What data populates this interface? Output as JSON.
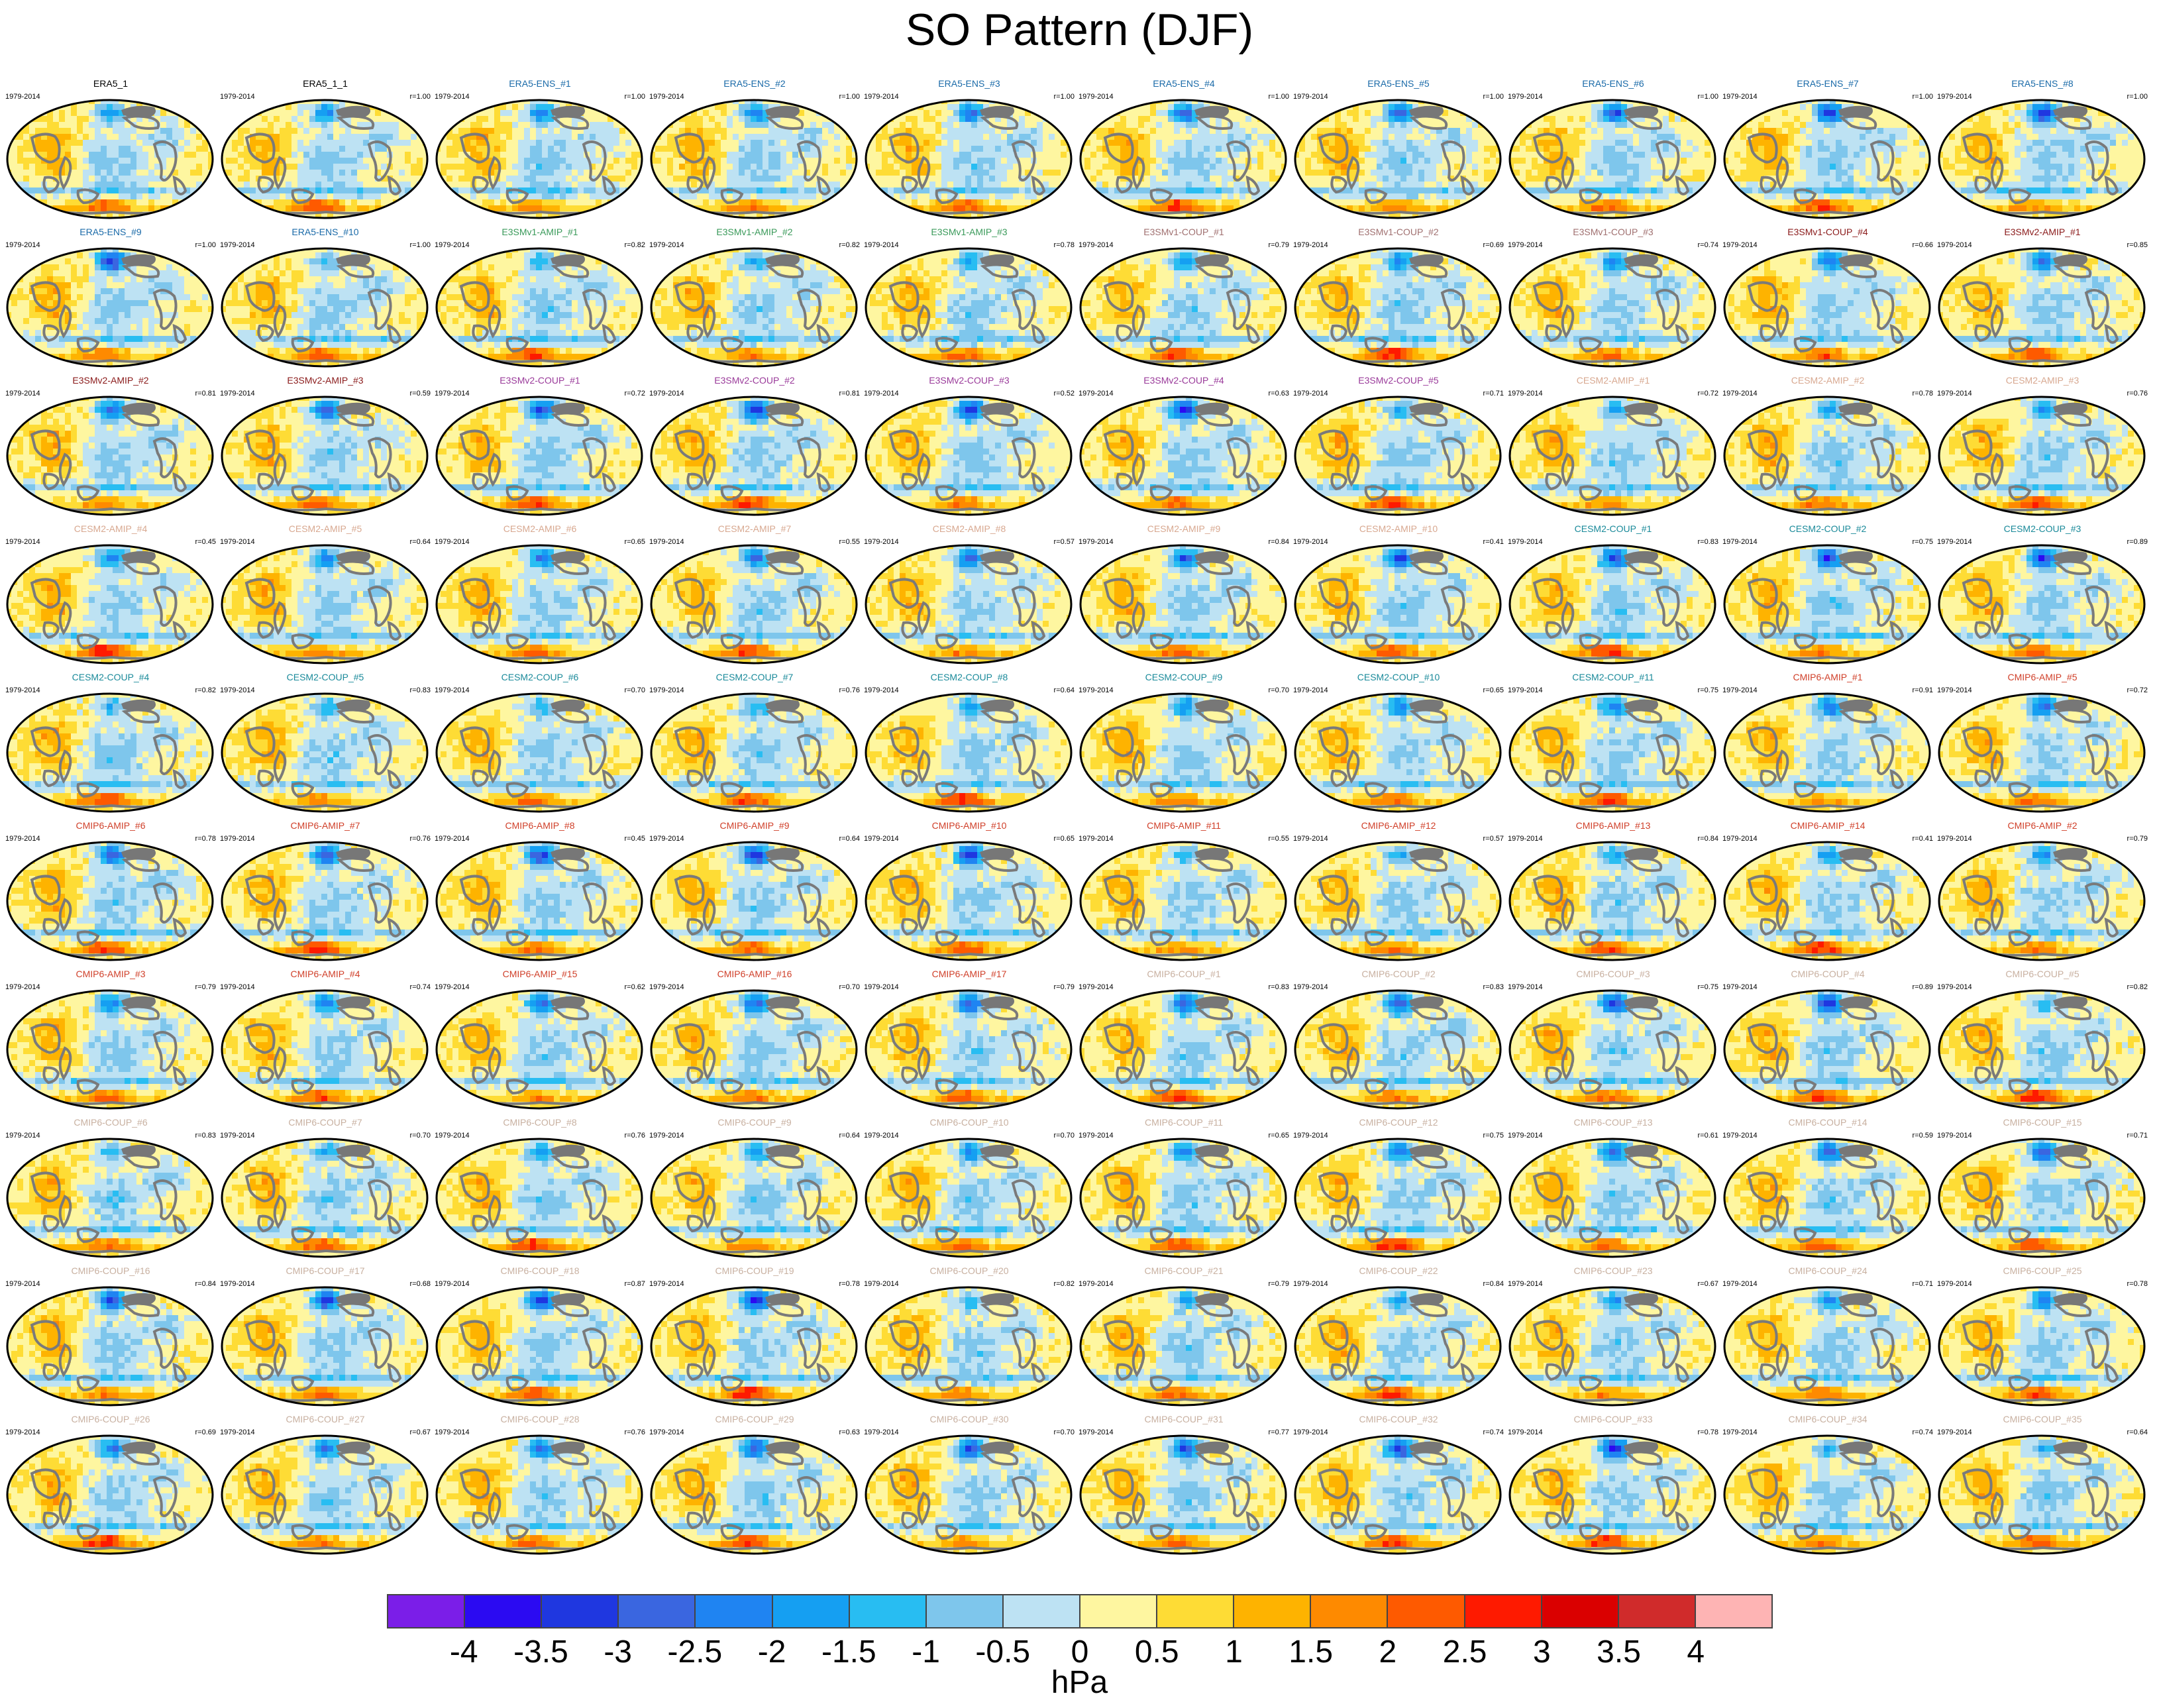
{
  "title": "SO Pattern (DJF)",
  "colorbar": {
    "unit": "hPa",
    "ticks": [
      "-4",
      "-3.5",
      "-3",
      "-2.5",
      "-2",
      "-1.5",
      "-1",
      "-0.5",
      "0",
      "0.5",
      "1",
      "1.5",
      "2",
      "2.5",
      "3",
      "3.5",
      "4"
    ],
    "colors": [
      "#7b1ee8",
      "#2b0af2",
      "#1f37e0",
      "#3a66e0",
      "#1f84f2",
      "#159ff2",
      "#28bdf2",
      "#7ec6ec",
      "#bde2f3",
      "#fef6a0",
      "#fedc35",
      "#feb300",
      "#fe8a00",
      "#fe5a00",
      "#fe1a00",
      "#da0000",
      "#d02b2b",
      "#feb4b4"
    ]
  },
  "panels": [
    {
      "years": "1979-2014",
      "name": "ERA5_1",
      "corr": "",
      "color": "#000000"
    },
    {
      "years": "1979-2014",
      "name": "ERA5_1_1",
      "corr": "r=1.00",
      "color": "#000000"
    },
    {
      "years": "1979-2014",
      "name": "ERA5-ENS_#1",
      "corr": "r=1.00",
      "color": "#1a6aa8"
    },
    {
      "years": "1979-2014",
      "name": "ERA5-ENS_#2",
      "corr": "r=1.00",
      "color": "#1a6aa8"
    },
    {
      "years": "1979-2014",
      "name": "ERA5-ENS_#3",
      "corr": "r=1.00",
      "color": "#1a6aa8"
    },
    {
      "years": "1979-2014",
      "name": "ERA5-ENS_#4",
      "corr": "r=1.00",
      "color": "#1a6aa8"
    },
    {
      "years": "1979-2014",
      "name": "ERA5-ENS_#5",
      "corr": "r=1.00",
      "color": "#1a6aa8"
    },
    {
      "years": "1979-2014",
      "name": "ERA5-ENS_#6",
      "corr": "r=1.00",
      "color": "#1a6aa8"
    },
    {
      "years": "1979-2014",
      "name": "ERA5-ENS_#7",
      "corr": "r=1.00",
      "color": "#1a6aa8"
    },
    {
      "years": "1979-2014",
      "name": "ERA5-ENS_#8",
      "corr": "r=1.00",
      "color": "#1a6aa8"
    },
    {
      "years": "1979-2014",
      "name": "ERA5-ENS_#9",
      "corr": "r=1.00",
      "color": "#1a6aa8"
    },
    {
      "years": "1979-2014",
      "name": "ERA5-ENS_#10",
      "corr": "r=1.00",
      "color": "#1a6aa8"
    },
    {
      "years": "1979-2014",
      "name": "E3SMv1-AMIP_#1",
      "corr": "r=0.82",
      "color": "#3a9a5a"
    },
    {
      "years": "1979-2014",
      "name": "E3SMv1-AMIP_#2",
      "corr": "r=0.82",
      "color": "#3a9a5a"
    },
    {
      "years": "1979-2014",
      "name": "E3SMv1-AMIP_#3",
      "corr": "r=0.78",
      "color": "#3a9a5a"
    },
    {
      "years": "1979-2014",
      "name": "E3SMv1-COUP_#1",
      "corr": "r=0.79",
      "color": "#a07070"
    },
    {
      "years": "1979-2014",
      "name": "E3SMv1-COUP_#2",
      "corr": "r=0.69",
      "color": "#a07070"
    },
    {
      "years": "1979-2014",
      "name": "E3SMv1-COUP_#3",
      "corr": "r=0.74",
      "color": "#a07070"
    },
    {
      "years": "1979-2014",
      "name": "E3SMv1-COUP_#4",
      "corr": "r=0.66",
      "color": "#8a1a1a"
    },
    {
      "years": "1979-2014",
      "name": "E3SMv2-AMIP_#1",
      "corr": "r=0.85",
      "color": "#8a1a1a"
    },
    {
      "years": "1979-2014",
      "name": "E3SMv2-AMIP_#2",
      "corr": "r=0.81",
      "color": "#8a1a1a"
    },
    {
      "years": "1979-2014",
      "name": "E3SMv2-AMIP_#3",
      "corr": "r=0.59",
      "color": "#8a1a1a"
    },
    {
      "years": "1979-2014",
      "name": "E3SMv2-COUP_#1",
      "corr": "r=0.72",
      "color": "#9a3a9a"
    },
    {
      "years": "1979-2014",
      "name": "E3SMv2-COUP_#2",
      "corr": "r=0.81",
      "color": "#9a3a9a"
    },
    {
      "years": "1979-2014",
      "name": "E3SMv2-COUP_#3",
      "corr": "r=0.52",
      "color": "#9a3a9a"
    },
    {
      "years": "1979-2014",
      "name": "E3SMv2-COUP_#4",
      "corr": "r=0.63",
      "color": "#9a3a9a"
    },
    {
      "years": "1979-2014",
      "name": "E3SMv2-COUP_#5",
      "corr": "r=0.71",
      "color": "#9a3a9a"
    },
    {
      "years": "1979-2014",
      "name": "CESM2-AMIP_#1",
      "corr": "r=0.72",
      "color": "#d8a890"
    },
    {
      "years": "1979-2014",
      "name": "CESM2-AMIP_#2",
      "corr": "r=0.78",
      "color": "#d8a890"
    },
    {
      "years": "1979-2014",
      "name": "CESM2-AMIP_#3",
      "corr": "r=0.76",
      "color": "#d8a890"
    },
    {
      "years": "1979-2014",
      "name": "CESM2-AMIP_#4",
      "corr": "r=0.45",
      "color": "#d8a890"
    },
    {
      "years": "1979-2014",
      "name": "CESM2-AMIP_#5",
      "corr": "r=0.64",
      "color": "#d8a890"
    },
    {
      "years": "1979-2014",
      "name": "CESM2-AMIP_#6",
      "corr": "r=0.65",
      "color": "#d8a890"
    },
    {
      "years": "1979-2014",
      "name": "CESM2-AMIP_#7",
      "corr": "r=0.55",
      "color": "#d8a890"
    },
    {
      "years": "1979-2014",
      "name": "CESM2-AMIP_#8",
      "corr": "r=0.57",
      "color": "#d8a890"
    },
    {
      "years": "1979-2014",
      "name": "CESM2-AMIP_#9",
      "corr": "r=0.84",
      "color": "#d8a890"
    },
    {
      "years": "1979-2014",
      "name": "CESM2-AMIP_#10",
      "corr": "r=0.41",
      "color": "#d8a890"
    },
    {
      "years": "1979-2014",
      "name": "CESM2-COUP_#1",
      "corr": "r=0.83",
      "color": "#1a8a9a"
    },
    {
      "years": "1979-2014",
      "name": "CESM2-COUP_#2",
      "corr": "r=0.75",
      "color": "#1a8a9a"
    },
    {
      "years": "1979-2014",
      "name": "CESM2-COUP_#3",
      "corr": "r=0.89",
      "color": "#1a8a9a"
    },
    {
      "years": "1979-2014",
      "name": "CESM2-COUP_#4",
      "corr": "r=0.82",
      "color": "#1a8a9a"
    },
    {
      "years": "1979-2014",
      "name": "CESM2-COUP_#5",
      "corr": "r=0.83",
      "color": "#1a8a9a"
    },
    {
      "years": "1979-2014",
      "name": "CESM2-COUP_#6",
      "corr": "r=0.70",
      "color": "#1a8a9a"
    },
    {
      "years": "1979-2014",
      "name": "CESM2-COUP_#7",
      "corr": "r=0.76",
      "color": "#1a8a9a"
    },
    {
      "years": "1979-2014",
      "name": "CESM2-COUP_#8",
      "corr": "r=0.64",
      "color": "#1a8a9a"
    },
    {
      "years": "1979-2014",
      "name": "CESM2-COUP_#9",
      "corr": "r=0.70",
      "color": "#1a8a9a"
    },
    {
      "years": "1979-2014",
      "name": "CESM2-COUP_#10",
      "corr": "r=0.65",
      "color": "#1a8a9a"
    },
    {
      "years": "1979-2014",
      "name": "CESM2-COUP_#11",
      "corr": "r=0.75",
      "color": "#1a8a9a"
    },
    {
      "years": "1979-2014",
      "name": "CMIP6-AMIP_#1",
      "corr": "r=0.91",
      "color": "#d0402a"
    },
    {
      "years": "1979-2014",
      "name": "CMIP6-AMIP_#5",
      "corr": "r=0.72",
      "color": "#d0402a"
    },
    {
      "years": "1979-2014",
      "name": "CMIP6-AMIP_#6",
      "corr": "r=0.78",
      "color": "#d0402a"
    },
    {
      "years": "1979-2014",
      "name": "CMIP6-AMIP_#7",
      "corr": "r=0.76",
      "color": "#d0402a"
    },
    {
      "years": "1979-2014",
      "name": "CMIP6-AMIP_#8",
      "corr": "r=0.45",
      "color": "#d0402a"
    },
    {
      "years": "1979-2014",
      "name": "CMIP6-AMIP_#9",
      "corr": "r=0.64",
      "color": "#d0402a"
    },
    {
      "years": "1979-2014",
      "name": "CMIP6-AMIP_#10",
      "corr": "r=0.65",
      "color": "#d0402a"
    },
    {
      "years": "1979-2014",
      "name": "CMIP6-AMIP_#11",
      "corr": "r=0.55",
      "color": "#d0402a"
    },
    {
      "years": "1979-2014",
      "name": "CMIP6-AMIP_#12",
      "corr": "r=0.57",
      "color": "#d0402a"
    },
    {
      "years": "1979-2014",
      "name": "CMIP6-AMIP_#13",
      "corr": "r=0.84",
      "color": "#d0402a"
    },
    {
      "years": "1979-2014",
      "name": "CMIP6-AMIP_#14",
      "corr": "r=0.41",
      "color": "#d0402a"
    },
    {
      "years": "1979-2014",
      "name": "CMIP6-AMIP_#2",
      "corr": "r=0.79",
      "color": "#d0402a"
    },
    {
      "years": "1979-2014",
      "name": "CMIP6-AMIP_#3",
      "corr": "r=0.79",
      "color": "#d0402a"
    },
    {
      "years": "1979-2014",
      "name": "CMIP6-AMIP_#4",
      "corr": "r=0.74",
      "color": "#d0402a"
    },
    {
      "years": "1979-2014",
      "name": "CMIP6-AMIP_#15",
      "corr": "r=0.62",
      "color": "#d0402a"
    },
    {
      "years": "1979-2014",
      "name": "CMIP6-AMIP_#16",
      "corr": "r=0.70",
      "color": "#d0402a"
    },
    {
      "years": "1979-2014",
      "name": "CMIP6-AMIP_#17",
      "corr": "r=0.79",
      "color": "#d0402a"
    },
    {
      "years": "1979-2014",
      "name": "CMIP6-COUP_#1",
      "corr": "r=0.83",
      "color": "#c8b0a0"
    },
    {
      "years": "1979-2014",
      "name": "CMIP6-COUP_#2",
      "corr": "r=0.83",
      "color": "#c8b0a0"
    },
    {
      "years": "1979-2014",
      "name": "CMIP6-COUP_#3",
      "corr": "r=0.75",
      "color": "#c8b0a0"
    },
    {
      "years": "1979-2014",
      "name": "CMIP6-COUP_#4",
      "corr": "r=0.89",
      "color": "#c8b0a0"
    },
    {
      "years": "1979-2014",
      "name": "CMIP6-COUP_#5",
      "corr": "r=0.82",
      "color": "#c8b0a0"
    },
    {
      "years": "1979-2014",
      "name": "CMIP6-COUP_#6",
      "corr": "r=0.83",
      "color": "#c8b0a0"
    },
    {
      "years": "1979-2014",
      "name": "CMIP6-COUP_#7",
      "corr": "r=0.70",
      "color": "#c8b0a0"
    },
    {
      "years": "1979-2014",
      "name": "CMIP6-COUP_#8",
      "corr": "r=0.76",
      "color": "#c8b0a0"
    },
    {
      "years": "1979-2014",
      "name": "CMIP6-COUP_#9",
      "corr": "r=0.64",
      "color": "#c8b0a0"
    },
    {
      "years": "1979-2014",
      "name": "CMIP6-COUP_#10",
      "corr": "r=0.70",
      "color": "#c8b0a0"
    },
    {
      "years": "1979-2014",
      "name": "CMIP6-COUP_#11",
      "corr": "r=0.65",
      "color": "#c8b0a0"
    },
    {
      "years": "1979-2014",
      "name": "CMIP6-COUP_#12",
      "corr": "r=0.75",
      "color": "#c8b0a0"
    },
    {
      "years": "1979-2014",
      "name": "CMIP6-COUP_#13",
      "corr": "r=0.61",
      "color": "#c8b0a0"
    },
    {
      "years": "1979-2014",
      "name": "CMIP6-COUP_#14",
      "corr": "r=0.59",
      "color": "#c8b0a0"
    },
    {
      "years": "1979-2014",
      "name": "CMIP6-COUP_#15",
      "corr": "r=0.71",
      "color": "#c8b0a0"
    },
    {
      "years": "1979-2014",
      "name": "CMIP6-COUP_#16",
      "corr": "r=0.84",
      "color": "#c8b0a0"
    },
    {
      "years": "1979-2014",
      "name": "CMIP6-COUP_#17",
      "corr": "r=0.68",
      "color": "#c8b0a0"
    },
    {
      "years": "1979-2014",
      "name": "CMIP6-COUP_#18",
      "corr": "r=0.87",
      "color": "#c8b0a0"
    },
    {
      "years": "1979-2014",
      "name": "CMIP6-COUP_#19",
      "corr": "r=0.78",
      "color": "#c8b0a0"
    },
    {
      "years": "1979-2014",
      "name": "CMIP6-COUP_#20",
      "corr": "r=0.82",
      "color": "#c8b0a0"
    },
    {
      "years": "1979-2014",
      "name": "CMIP6-COUP_#21",
      "corr": "r=0.79",
      "color": "#c8b0a0"
    },
    {
      "years": "1979-2014",
      "name": "CMIP6-COUP_#22",
      "corr": "r=0.84",
      "color": "#c8b0a0"
    },
    {
      "years": "1979-2014",
      "name": "CMIP6-COUP_#23",
      "corr": "r=0.67",
      "color": "#c8b0a0"
    },
    {
      "years": "1979-2014",
      "name": "CMIP6-COUP_#24",
      "corr": "r=0.71",
      "color": "#c8b0a0"
    },
    {
      "years": "1979-2014",
      "name": "CMIP6-COUP_#25",
      "corr": "r=0.78",
      "color": "#c8b0a0"
    },
    {
      "years": "1979-2014",
      "name": "CMIP6-COUP_#26",
      "corr": "r=0.69",
      "color": "#c8b0a0"
    },
    {
      "years": "1979-2014",
      "name": "CMIP6-COUP_#27",
      "corr": "r=0.67",
      "color": "#c8b0a0"
    },
    {
      "years": "1979-2014",
      "name": "CMIP6-COUP_#28",
      "corr": "r=0.76",
      "color": "#c8b0a0"
    },
    {
      "years": "1979-2014",
      "name": "CMIP6-COUP_#29",
      "corr": "r=0.63",
      "color": "#c8b0a0"
    },
    {
      "years": "1979-2014",
      "name": "CMIP6-COUP_#30",
      "corr": "r=0.70",
      "color": "#c8b0a0"
    },
    {
      "years": "1979-2014",
      "name": "CMIP6-COUP_#31",
      "corr": "r=0.77",
      "color": "#c8b0a0"
    },
    {
      "years": "1979-2014",
      "name": "CMIP6-COUP_#32",
      "corr": "r=0.74",
      "color": "#c8b0a0"
    },
    {
      "years": "1979-2014",
      "name": "CMIP6-COUP_#33",
      "corr": "r=0.78",
      "color": "#c8b0a0"
    },
    {
      "years": "1979-2014",
      "name": "CMIP6-COUP_#34",
      "corr": "r=0.74",
      "color": "#c8b0a0"
    },
    {
      "years": "1979-2014",
      "name": "CMIP6-COUP_#35",
      "corr": "r=0.64",
      "color": "#c8b0a0"
    }
  ]
}
